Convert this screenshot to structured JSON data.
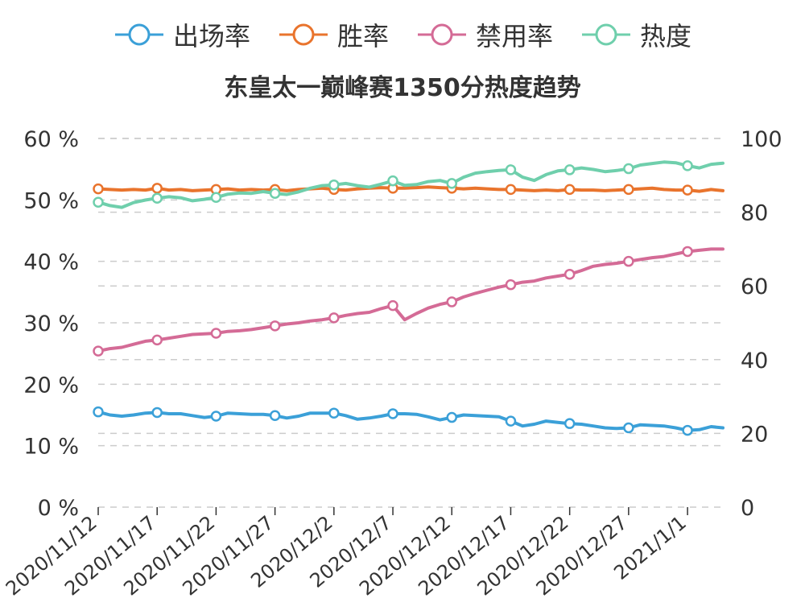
{
  "chart_data": {
    "type": "line",
    "title": "东皇太一巅峰赛1350分热度趋势",
    "legend_position": "top",
    "grid": true,
    "x": [
      "2020/11/12",
      "2020/11/13",
      "2020/11/14",
      "2020/11/15",
      "2020/11/16",
      "2020/11/17",
      "2020/11/18",
      "2020/11/19",
      "2020/11/20",
      "2020/11/21",
      "2020/11/22",
      "2020/11/23",
      "2020/11/24",
      "2020/11/25",
      "2020/11/26",
      "2020/11/27",
      "2020/11/28",
      "2020/11/29",
      "2020/11/30",
      "2020/12/1",
      "2020/12/2",
      "2020/12/3",
      "2020/12/4",
      "2020/12/5",
      "2020/12/6",
      "2020/12/7",
      "2020/12/8",
      "2020/12/9",
      "2020/12/10",
      "2020/12/11",
      "2020/12/12",
      "2020/12/13",
      "2020/12/14",
      "2020/12/15",
      "2020/12/16",
      "2020/12/17",
      "2020/12/18",
      "2020/12/19",
      "2020/12/20",
      "2020/12/21",
      "2020/12/22",
      "2020/12/23",
      "2020/12/24",
      "2020/12/25",
      "2020/12/26",
      "2020/12/27",
      "2020/12/28",
      "2020/12/29",
      "2020/12/30",
      "2020/12/31",
      "2021/1/1",
      "2021/1/2",
      "2021/1/3",
      "2021/1/4"
    ],
    "x_tick_labels": [
      "2020/11/12",
      "2020/11/17",
      "2020/11/22",
      "2020/11/27",
      "2020/12/2",
      "2020/12/7",
      "2020/12/12",
      "2020/12/17",
      "2020/12/22",
      "2020/12/27",
      "2021/1/1"
    ],
    "y_left": {
      "ticks": [
        "0 %",
        "10 %",
        "20 %",
        "30 %",
        "40 %",
        "50 %",
        "60 %"
      ],
      "range": [
        0,
        60
      ],
      "unit": "%"
    },
    "y_right": {
      "ticks": [
        "0",
        "20",
        "40",
        "60",
        "80",
        "100"
      ],
      "range": [
        0,
        100
      ]
    },
    "series": [
      {
        "name": "出场率",
        "color": "#3ba0d8",
        "axis": "left",
        "values": [
          15.5,
          15.0,
          14.8,
          15.0,
          15.3,
          15.4,
          15.2,
          15.2,
          14.9,
          14.6,
          14.8,
          15.3,
          15.2,
          15.1,
          15.1,
          14.9,
          14.5,
          14.8,
          15.3,
          15.3,
          15.3,
          14.9,
          14.3,
          14.5,
          14.8,
          15.2,
          15.2,
          15.1,
          14.7,
          14.2,
          14.6,
          15.0,
          14.9,
          14.8,
          14.7,
          14.0,
          13.2,
          13.5,
          14.0,
          13.8,
          13.6,
          13.5,
          13.2,
          12.9,
          12.8,
          12.9,
          13.4,
          13.3,
          13.2,
          12.9,
          12.5,
          12.6,
          13.1,
          12.9
        ]
      },
      {
        "name": "胜率",
        "color": "#e9742d",
        "axis": "left",
        "values": [
          51.8,
          51.7,
          51.6,
          51.7,
          51.6,
          51.9,
          51.6,
          51.7,
          51.5,
          51.6,
          51.7,
          51.8,
          51.6,
          51.7,
          51.6,
          51.7,
          51.5,
          51.7,
          51.8,
          51.9,
          51.7,
          51.6,
          51.8,
          51.9,
          52.0,
          51.9,
          51.9,
          52.0,
          52.1,
          52.0,
          51.9,
          51.8,
          51.9,
          51.8,
          51.7,
          51.7,
          51.6,
          51.5,
          51.6,
          51.5,
          51.7,
          51.6,
          51.6,
          51.5,
          51.6,
          51.7,
          51.8,
          51.9,
          51.7,
          51.6,
          51.6,
          51.4,
          51.7,
          51.5
        ]
      },
      {
        "name": "禁用率",
        "color": "#d46b96",
        "axis": "left",
        "values": [
          25.4,
          25.8,
          26.0,
          26.5,
          27.0,
          27.2,
          27.5,
          27.8,
          28.1,
          28.2,
          28.3,
          28.6,
          28.7,
          28.9,
          29.2,
          29.5,
          29.8,
          30.0,
          30.3,
          30.5,
          30.8,
          31.2,
          31.5,
          31.7,
          32.3,
          32.8,
          30.5,
          31.5,
          32.4,
          33.0,
          33.4,
          34.2,
          34.8,
          35.3,
          35.8,
          36.2,
          36.6,
          36.8,
          37.3,
          37.6,
          37.9,
          38.5,
          39.2,
          39.5,
          39.7,
          40.0,
          40.3,
          40.6,
          40.8,
          41.2,
          41.6,
          41.8,
          42.0,
          42.0
        ]
      },
      {
        "name": "热度",
        "color": "#6fcfac",
        "axis": "right",
        "values": [
          82.7,
          81.8,
          81.3,
          82.6,
          83.3,
          83.8,
          84.2,
          83.9,
          83.1,
          83.5,
          84.0,
          84.9,
          85.2,
          85.1,
          85.6,
          85.1,
          84.8,
          85.5,
          86.5,
          87.2,
          87.4,
          87.8,
          87.2,
          86.8,
          87.6,
          88.5,
          87.3,
          87.5,
          88.3,
          88.6,
          87.8,
          89.5,
          90.6,
          91.0,
          91.3,
          91.5,
          89.5,
          88.6,
          90.2,
          91.2,
          91.5,
          92.0,
          91.6,
          91.0,
          91.3,
          91.8,
          92.8,
          93.2,
          93.6,
          93.4,
          92.6,
          92.0,
          93.0,
          93.3
        ]
      }
    ]
  }
}
